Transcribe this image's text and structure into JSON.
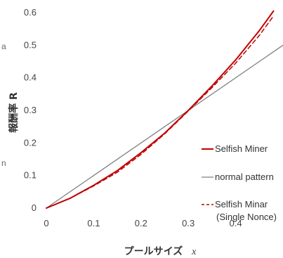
{
  "chart_data": {
    "type": "line",
    "title": "",
    "xlabel": "プールサイズ",
    "xlabel_symbol": "x",
    "ylabel": "報酬率 R",
    "xlim": [
      0,
      0.5
    ],
    "ylim": [
      0,
      0.6
    ],
    "x_ticks": [
      "0",
      "0.1",
      "0.2",
      "0.3",
      "0.4"
    ],
    "y_ticks": [
      "0",
      "0.1",
      "0.2",
      "0.3",
      "0.4",
      "0.5",
      "0.6"
    ],
    "grid": false,
    "legend_position": "right",
    "series": [
      {
        "name": "Selfish Miner",
        "color": "#c00000",
        "style": "solid",
        "x": [
          0,
          0.05,
          0.1,
          0.15,
          0.2,
          0.25,
          0.3,
          0.35,
          0.4,
          0.45,
          0.48
        ],
        "y": [
          0,
          0.03,
          0.07,
          0.115,
          0.17,
          0.23,
          0.3,
          0.375,
          0.455,
          0.545,
          0.605
        ]
      },
      {
        "name": "normal pattern",
        "color": "#808080",
        "style": "solid",
        "x": [
          0,
          0.5
        ],
        "y": [
          0,
          0.5
        ]
      },
      {
        "name": "Selfish Minar (Single Nonce)",
        "name_lines": [
          "Selfish Minar",
          "(Single Nonce)"
        ],
        "color": "#c00000",
        "style": "dashed",
        "x": [
          0,
          0.05,
          0.1,
          0.15,
          0.2,
          0.25,
          0.3,
          0.35,
          0.4,
          0.45,
          0.48
        ],
        "y": [
          0,
          0.03,
          0.068,
          0.11,
          0.165,
          0.228,
          0.298,
          0.37,
          0.445,
          0.53,
          0.59
        ]
      }
    ],
    "edge_fragments": [
      "a",
      "n"
    ]
  }
}
